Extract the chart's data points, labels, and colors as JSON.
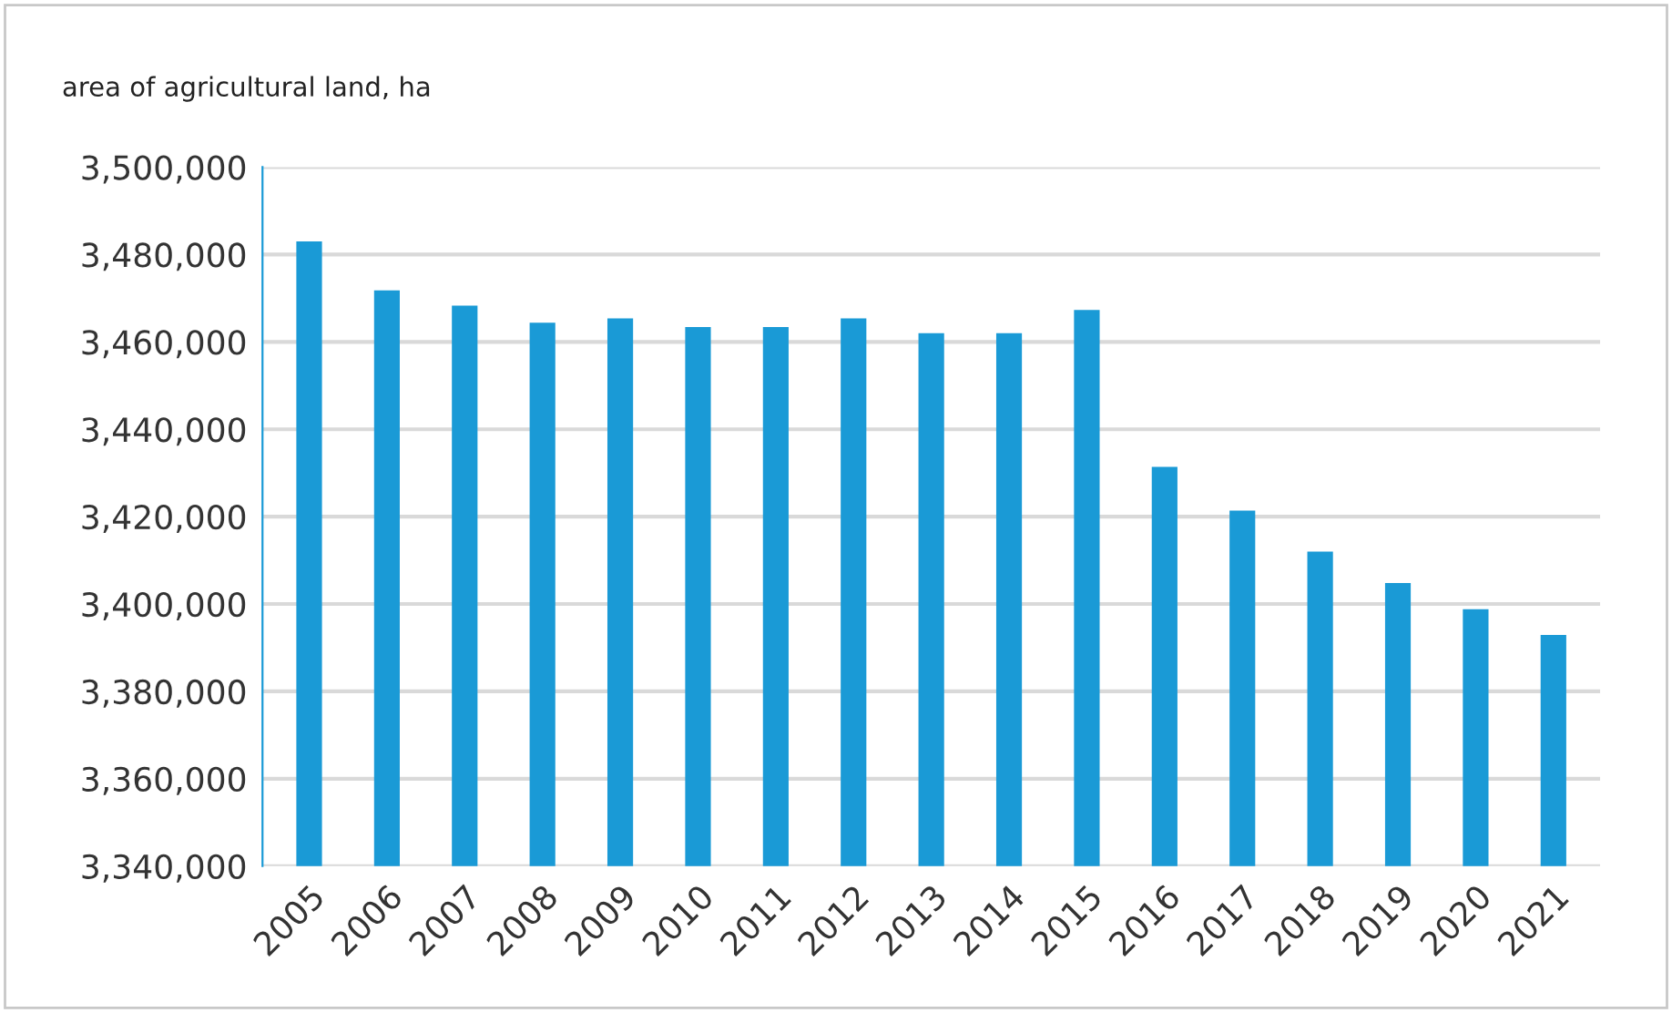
{
  "chart_data": {
    "type": "bar",
    "ylabel": "area of agricultural land, ha",
    "categories": [
      "2005",
      "2006",
      "2007",
      "2008",
      "2009",
      "2010",
      "2011",
      "2012",
      "2013",
      "2014",
      "2015",
      "2016",
      "2017",
      "2018",
      "2019",
      "2020",
      "2021"
    ],
    "values": [
      3483000,
      3471800,
      3468300,
      3464400,
      3465400,
      3463400,
      3463400,
      3465400,
      3462000,
      3462000,
      3467300,
      3431400,
      3421400,
      3412000,
      3404800,
      3398800,
      3392900
    ],
    "color": "#1a9ad6",
    "ylim": [
      3340000,
      3500000
    ],
    "yticks": [
      {
        "value": 3340000,
        "label": "3,340,000"
      },
      {
        "value": 3360000,
        "label": "3,360,000"
      },
      {
        "value": 3380000,
        "label": "3,380,000"
      },
      {
        "value": 3400000,
        "label": "3,400,000"
      },
      {
        "value": 3420000,
        "label": "3,420,000"
      },
      {
        "value": 3440000,
        "label": "3,440,000"
      },
      {
        "value": 3460000,
        "label": "3,460,000"
      },
      {
        "value": 3480000,
        "label": "3,480,000"
      },
      {
        "value": 3500000,
        "label": "3,500,000"
      }
    ],
    "grid": "y"
  }
}
